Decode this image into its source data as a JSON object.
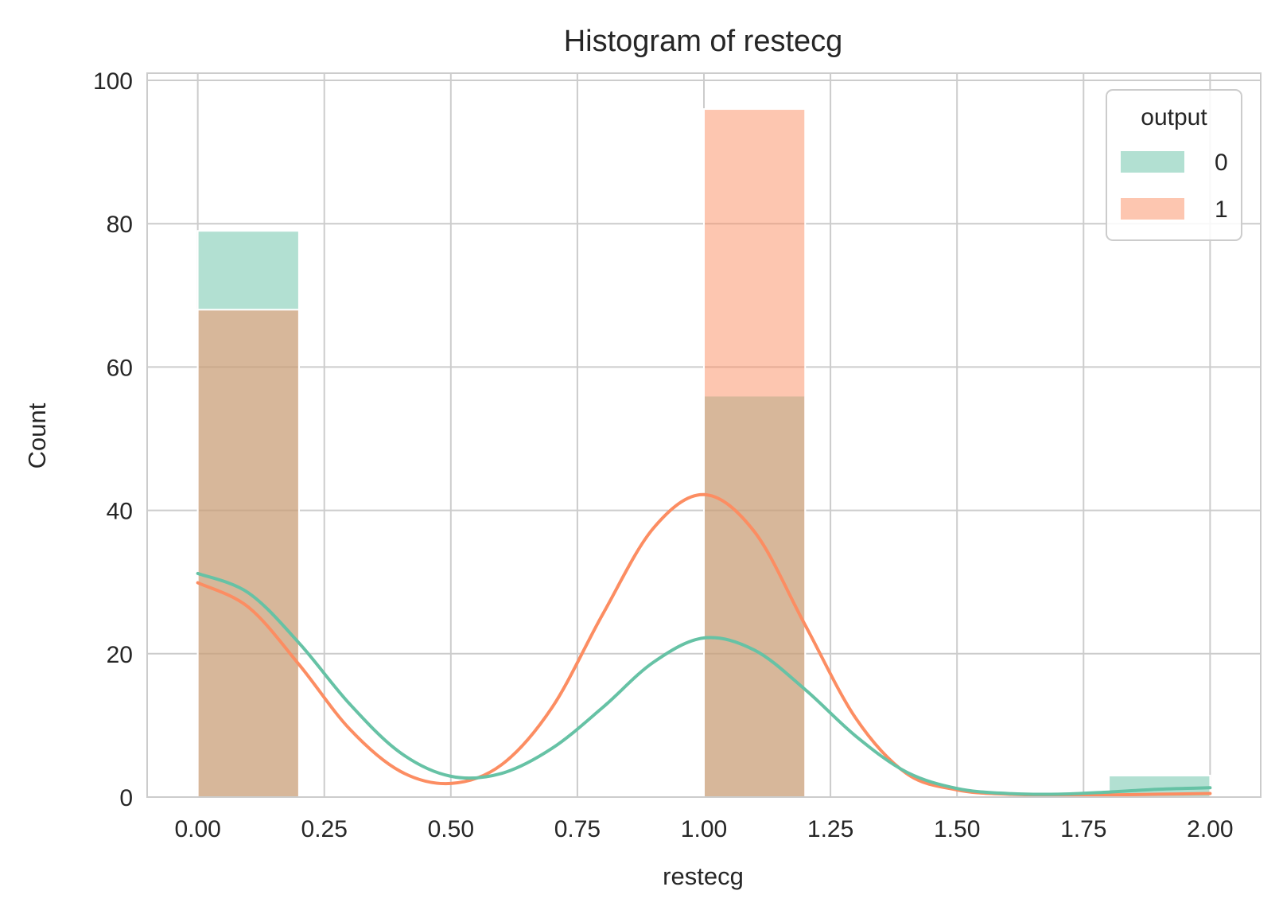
{
  "chart_data": {
    "type": "bar",
    "subtype": "histogram with kde",
    "title": "Histogram of restecg",
    "xlabel": "restecg",
    "ylabel": "Count",
    "xlim": [
      -0.1,
      2.1
    ],
    "ylim": [
      0,
      101
    ],
    "xticks": [
      0.0,
      0.25,
      0.5,
      0.75,
      1.0,
      1.25,
      1.5,
      1.75,
      2.0
    ],
    "xtick_labels": [
      "0.00",
      "0.25",
      "0.50",
      "0.75",
      "1.00",
      "1.25",
      "1.50",
      "1.75",
      "2.00"
    ],
    "yticks": [
      0,
      20,
      40,
      60,
      80,
      100
    ],
    "ytick_labels": [
      "0",
      "20",
      "40",
      "60",
      "80",
      "100"
    ],
    "grid": true,
    "legend": {
      "title": "output",
      "position": "top-right"
    },
    "bin_width": 0.2,
    "series": [
      {
        "name": "0",
        "color": "#66c2a5",
        "bins": [
          {
            "x0": 0.0,
            "x1": 0.2,
            "count": 79
          },
          {
            "x0": 1.0,
            "x1": 1.2,
            "count": 56
          },
          {
            "x0": 1.8,
            "x1": 2.0,
            "count": 3
          }
        ],
        "kde": {
          "x": [
            0.0,
            0.1,
            0.2,
            0.3,
            0.4,
            0.5,
            0.6,
            0.7,
            0.8,
            0.9,
            1.0,
            1.1,
            1.2,
            1.3,
            1.4,
            1.5,
            1.6,
            1.7,
            1.8,
            1.9,
            2.0
          ],
          "y": [
            31.2,
            28.5,
            21.5,
            13.0,
            6.2,
            2.9,
            3.3,
            6.8,
            12.5,
            18.8,
            22.2,
            20.5,
            15.0,
            8.5,
            3.5,
            1.2,
            0.5,
            0.4,
            0.7,
            1.1,
            1.3
          ]
        }
      },
      {
        "name": "1",
        "color": "#fc8d62",
        "bins": [
          {
            "x0": 0.0,
            "x1": 0.2,
            "count": 68
          },
          {
            "x0": 1.0,
            "x1": 1.2,
            "count": 96
          },
          {
            "x0": 1.8,
            "x1": 2.0,
            "count": 0
          }
        ],
        "kde": {
          "x": [
            0.0,
            0.1,
            0.2,
            0.3,
            0.4,
            0.5,
            0.6,
            0.7,
            0.8,
            0.9,
            1.0,
            1.1,
            1.2,
            1.3,
            1.4,
            1.5,
            1.6,
            1.7,
            1.8,
            1.9,
            2.0
          ],
          "y": [
            29.9,
            26.5,
            18.5,
            9.5,
            3.6,
            1.9,
            4.5,
            12.5,
            25.5,
            37.5,
            42.2,
            37.0,
            24.0,
            11.0,
            3.3,
            1.0,
            0.4,
            0.3,
            0.3,
            0.4,
            0.5
          ]
        }
      }
    ]
  }
}
